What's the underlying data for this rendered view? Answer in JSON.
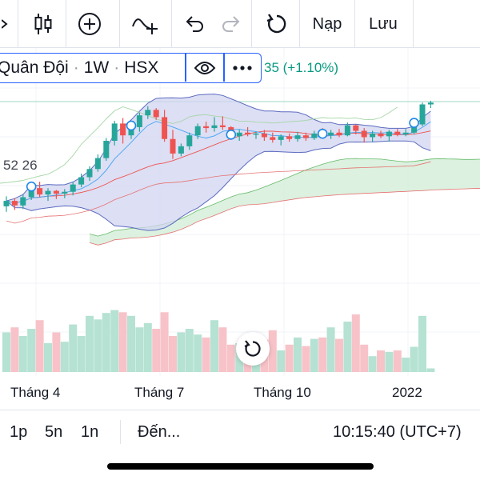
{
  "toolbar": {
    "load_label": "Nạp",
    "save_label": "Lưu",
    "icons": [
      "chart-type-icon",
      "add-indicator-icon",
      "drawing-tool-icon",
      "undo-icon",
      "redo-icon",
      "reload-icon"
    ]
  },
  "symbol": {
    "name": "Quân Đội",
    "interval": "1W",
    "exchange": "HSX",
    "change": "35 (+1.10%)"
  },
  "indicator_value": "52 26",
  "x_axis": [
    "Tháng 4",
    "Tháng 7",
    "Tháng 10",
    "2022"
  ],
  "bottom_bar": {
    "ranges": [
      "1p",
      "5n",
      "1n"
    ],
    "goto_label": "Đến...",
    "clock": "10:15:40 (UTC+7)"
  },
  "colors": {
    "up": "#26a69a",
    "down": "#ef5350",
    "band_fill": "#d1d4f0",
    "cloud_fill": "#d6efd9",
    "accent": "#2962ff"
  },
  "chart_data": {
    "type": "candlestick",
    "candles": [
      {
        "o": 41.2,
        "h": 42.3,
        "l": 40.6,
        "c": 41.8
      },
      {
        "o": 41.8,
        "h": 42.1,
        "l": 40.8,
        "c": 41.3
      },
      {
        "o": 41.3,
        "h": 42.5,
        "l": 40.9,
        "c": 42.2
      },
      {
        "o": 42.2,
        "h": 43.6,
        "l": 41.9,
        "c": 43.2
      },
      {
        "o": 43.2,
        "h": 43.9,
        "l": 42.2,
        "c": 42.5
      },
      {
        "o": 42.5,
        "h": 43.2,
        "l": 41.8,
        "c": 42.9
      },
      {
        "o": 42.9,
        "h": 43.0,
        "l": 42.0,
        "c": 42.6
      },
      {
        "o": 42.6,
        "h": 43.1,
        "l": 42.1,
        "c": 42.8
      },
      {
        "o": 42.8,
        "h": 43.9,
        "l": 42.4,
        "c": 43.6
      },
      {
        "o": 43.6,
        "h": 44.8,
        "l": 43.3,
        "c": 44.4
      },
      {
        "o": 44.4,
        "h": 45.6,
        "l": 44.0,
        "c": 45.3
      },
      {
        "o": 45.3,
        "h": 46.9,
        "l": 45.0,
        "c": 46.5
      },
      {
        "o": 46.5,
        "h": 48.7,
        "l": 46.2,
        "c": 48.4
      },
      {
        "o": 48.4,
        "h": 50.6,
        "l": 47.9,
        "c": 50.3
      },
      {
        "o": 50.3,
        "h": 50.9,
        "l": 48.1,
        "c": 49.0
      },
      {
        "o": 49.0,
        "h": 50.4,
        "l": 48.6,
        "c": 49.9
      },
      {
        "o": 49.9,
        "h": 51.5,
        "l": 49.4,
        "c": 51.2
      },
      {
        "o": 51.2,
        "h": 52.2,
        "l": 50.8,
        "c": 51.8
      },
      {
        "o": 51.8,
        "h": 52.0,
        "l": 50.7,
        "c": 51.0
      },
      {
        "o": 51.0,
        "h": 51.8,
        "l": 48.3,
        "c": 48.6
      },
      {
        "o": 48.6,
        "h": 49.6,
        "l": 46.4,
        "c": 47.0
      },
      {
        "o": 47.0,
        "h": 48.1,
        "l": 46.7,
        "c": 47.8
      },
      {
        "o": 47.8,
        "h": 49.3,
        "l": 47.4,
        "c": 49.0
      },
      {
        "o": 49.0,
        "h": 50.3,
        "l": 48.6,
        "c": 50.0
      },
      {
        "o": 50.0,
        "h": 50.5,
        "l": 49.3,
        "c": 49.8
      },
      {
        "o": 49.8,
        "h": 51.0,
        "l": 49.4,
        "c": 50.1
      },
      {
        "o": 50.1,
        "h": 51.1,
        "l": 49.6,
        "c": 49.9
      },
      {
        "o": 49.9,
        "h": 50.0,
        "l": 48.5,
        "c": 48.9
      },
      {
        "o": 48.9,
        "h": 49.6,
        "l": 48.4,
        "c": 49.3
      },
      {
        "o": 49.3,
        "h": 49.9,
        "l": 48.9,
        "c": 49.1
      },
      {
        "o": 49.1,
        "h": 49.4,
        "l": 48.6,
        "c": 49.2
      },
      {
        "o": 49.2,
        "h": 49.6,
        "l": 48.4,
        "c": 48.8
      },
      {
        "o": 48.8,
        "h": 49.3,
        "l": 48.2,
        "c": 48.5
      },
      {
        "o": 48.5,
        "h": 49.1,
        "l": 47.9,
        "c": 48.9
      },
      {
        "o": 48.9,
        "h": 49.2,
        "l": 48.3,
        "c": 48.6
      },
      {
        "o": 48.6,
        "h": 49.4,
        "l": 48.3,
        "c": 49.0
      },
      {
        "o": 49.0,
        "h": 49.3,
        "l": 48.4,
        "c": 48.7
      },
      {
        "o": 48.7,
        "h": 49.5,
        "l": 48.5,
        "c": 49.2
      },
      {
        "o": 49.2,
        "h": 49.8,
        "l": 48.8,
        "c": 49.0
      },
      {
        "o": 49.0,
        "h": 49.6,
        "l": 48.6,
        "c": 49.3
      },
      {
        "o": 49.3,
        "h": 49.7,
        "l": 48.8,
        "c": 49.0
      },
      {
        "o": 49.0,
        "h": 50.4,
        "l": 48.9,
        "c": 50.1
      },
      {
        "o": 50.1,
        "h": 50.2,
        "l": 49.1,
        "c": 49.5
      },
      {
        "o": 49.5,
        "h": 49.8,
        "l": 48.2,
        "c": 48.8
      },
      {
        "o": 48.8,
        "h": 49.5,
        "l": 48.3,
        "c": 49.2
      },
      {
        "o": 49.2,
        "h": 49.5,
        "l": 48.7,
        "c": 48.9
      },
      {
        "o": 48.9,
        "h": 49.6,
        "l": 48.3,
        "c": 49.4
      },
      {
        "o": 49.4,
        "h": 49.7,
        "l": 48.9,
        "c": 49.1
      },
      {
        "o": 49.1,
        "h": 49.7,
        "l": 48.9,
        "c": 49.3
      },
      {
        "o": 49.3,
        "h": 50.5,
        "l": 49.1,
        "c": 50.2
      },
      {
        "o": 50.2,
        "h": 52.6,
        "l": 50.0,
        "c": 52.4
      },
      {
        "o": 52.4,
        "h": 52.8,
        "l": 52.0,
        "c": 52.6
      }
    ],
    "volumes": [
      0.55,
      0.62,
      0.5,
      0.6,
      0.72,
      0.4,
      0.55,
      0.42,
      0.66,
      0.5,
      0.78,
      0.73,
      0.82,
      0.86,
      0.83,
      0.78,
      0.62,
      0.68,
      0.6,
      0.83,
      0.5,
      0.55,
      0.6,
      0.52,
      0.48,
      0.72,
      0.62,
      0.38,
      0.4,
      0.5,
      0.3,
      0.45,
      0.58,
      0.3,
      0.38,
      0.48,
      0.36,
      0.46,
      0.48,
      0.62,
      0.46,
      0.7,
      0.8,
      0.38,
      0.22,
      0.3,
      0.28,
      0.3,
      0.2,
      0.35,
      0.78,
      0.05
    ],
    "ylim": [
      37.5,
      53.5
    ]
  }
}
